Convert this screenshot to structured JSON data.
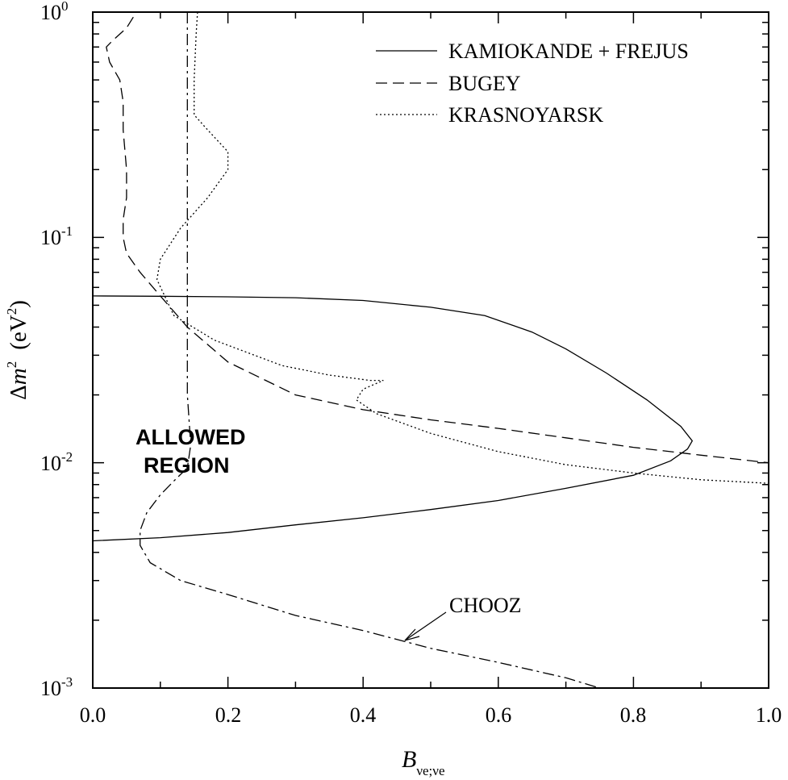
{
  "chart_data": {
    "type": "line",
    "xlim": [
      0.0,
      1.0
    ],
    "ylim": [
      0.001,
      1
    ],
    "y_scale": "log",
    "grid": false,
    "legend_position": "top-right",
    "x_ticks": [
      "0.0",
      "0.2",
      "0.4",
      "0.6",
      "0.8",
      "1.0"
    ],
    "y_ticks": [
      {
        "base": "10",
        "exp": "0"
      },
      {
        "base": "10",
        "exp": "-1"
      },
      {
        "base": "10",
        "exp": "-2"
      },
      {
        "base": "10",
        "exp": "-3"
      }
    ],
    "xlabel": {
      "main": "B",
      "sub": "νe;νe"
    },
    "ylabel": {
      "delta": "Δ",
      "m": "m",
      "sup": "2",
      "unit_open": "(eV",
      "unit_sup": "2",
      "unit_close": ")"
    },
    "annotations": {
      "allowed_line1": "ALLOWED",
      "allowed_line2": "REGION",
      "chooz_label": "CHOOZ"
    },
    "series": [
      {
        "name": "KAMIOKANDE + FREJUS",
        "style": "solid",
        "points": [
          [
            0.0,
            0.055
          ],
          [
            0.1,
            0.0548
          ],
          [
            0.2,
            0.0545
          ],
          [
            0.3,
            0.054
          ],
          [
            0.4,
            0.0525
          ],
          [
            0.5,
            0.049
          ],
          [
            0.58,
            0.045
          ],
          [
            0.65,
            0.038
          ],
          [
            0.7,
            0.032
          ],
          [
            0.76,
            0.025
          ],
          [
            0.82,
            0.019
          ],
          [
            0.87,
            0.0145
          ],
          [
            0.887,
            0.0125
          ],
          [
            0.88,
            0.0115
          ],
          [
            0.855,
            0.0102
          ],
          [
            0.8,
            0.0088
          ],
          [
            0.7,
            0.0077
          ],
          [
            0.6,
            0.0068
          ],
          [
            0.5,
            0.0062
          ],
          [
            0.4,
            0.0057
          ],
          [
            0.3,
            0.0053
          ],
          [
            0.2,
            0.0049
          ],
          [
            0.1,
            0.00465
          ],
          [
            0.0,
            0.0045
          ]
        ]
      },
      {
        "name": "BUGEY",
        "style": "dashed",
        "points": [
          [
            0.06,
            0.95
          ],
          [
            0.05,
            0.85
          ],
          [
            0.03,
            0.75
          ],
          [
            0.02,
            0.7
          ],
          [
            0.025,
            0.6
          ],
          [
            0.04,
            0.5
          ],
          [
            0.045,
            0.4
          ],
          [
            0.045,
            0.3
          ],
          [
            0.05,
            0.2
          ],
          [
            0.05,
            0.15
          ],
          [
            0.045,
            0.12
          ],
          [
            0.045,
            0.1
          ],
          [
            0.05,
            0.085
          ],
          [
            0.07,
            0.07
          ],
          [
            0.1,
            0.055
          ],
          [
            0.14,
            0.04
          ],
          [
            0.2,
            0.028
          ],
          [
            0.3,
            0.02
          ],
          [
            0.4,
            0.0172
          ],
          [
            0.5,
            0.0155
          ],
          [
            0.6,
            0.0142
          ],
          [
            0.7,
            0.0129
          ],
          [
            0.8,
            0.0117
          ],
          [
            0.9,
            0.0108
          ],
          [
            1.0,
            0.01
          ]
        ]
      },
      {
        "name": "KRASNOYARSK",
        "style": "dotted",
        "points": [
          [
            0.155,
            1.0
          ],
          [
            0.153,
            0.8
          ],
          [
            0.15,
            0.5
          ],
          [
            0.15,
            0.35
          ],
          [
            0.17,
            0.3
          ],
          [
            0.2,
            0.24
          ],
          [
            0.2,
            0.2
          ],
          [
            0.17,
            0.15
          ],
          [
            0.13,
            0.11
          ],
          [
            0.1,
            0.08
          ],
          [
            0.095,
            0.065
          ],
          [
            0.12,
            0.045
          ],
          [
            0.18,
            0.035
          ],
          [
            0.28,
            0.027
          ],
          [
            0.35,
            0.0245
          ],
          [
            0.41,
            0.0232
          ],
          [
            0.43,
            0.0232
          ],
          [
            0.4,
            0.0212
          ],
          [
            0.39,
            0.019
          ],
          [
            0.42,
            0.0165
          ],
          [
            0.5,
            0.0135
          ],
          [
            0.6,
            0.0112
          ],
          [
            0.7,
            0.0098
          ],
          [
            0.8,
            0.009
          ],
          [
            0.9,
            0.0084
          ],
          [
            1.0,
            0.0081
          ]
        ]
      },
      {
        "name": "CHOOZ",
        "style": "dashdot",
        "points": [
          [
            0.14,
            1.0
          ],
          [
            0.14,
            0.5
          ],
          [
            0.14,
            0.2
          ],
          [
            0.14,
            0.1
          ],
          [
            0.14,
            0.05
          ],
          [
            0.14,
            0.03
          ],
          [
            0.14,
            0.02
          ],
          [
            0.145,
            0.012
          ],
          [
            0.14,
            0.0095
          ],
          [
            0.12,
            0.0083
          ],
          [
            0.1,
            0.0072
          ],
          [
            0.08,
            0.006
          ],
          [
            0.07,
            0.005
          ],
          [
            0.07,
            0.0043
          ],
          [
            0.085,
            0.0036
          ],
          [
            0.13,
            0.003
          ],
          [
            0.2,
            0.0026
          ],
          [
            0.3,
            0.0021
          ],
          [
            0.4,
            0.0018
          ],
          [
            0.5,
            0.0015
          ],
          [
            0.6,
            0.0013
          ],
          [
            0.7,
            0.00111
          ],
          [
            0.75,
            0.001
          ]
        ]
      }
    ]
  }
}
